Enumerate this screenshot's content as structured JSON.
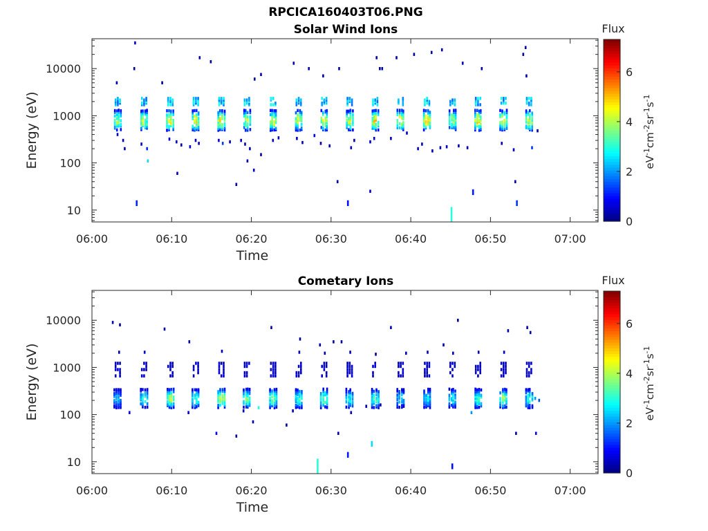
{
  "figure": {
    "title": "RPCICA160403T06.PNG"
  },
  "colors": {
    "text": "#262626",
    "colormap": [
      "#00007f",
      "#0000ff",
      "#007fff",
      "#00ffff",
      "#7fff7f",
      "#ffff00",
      "#ff7f00",
      "#ff0000",
      "#7f0000"
    ]
  },
  "chart_data": [
    {
      "type": "heatmap",
      "title": "Solar Wind Ions",
      "xlabel": "Time",
      "ylabel": "Energy (eV)",
      "x_ticks": [
        "06:00",
        "06:10",
        "06:20",
        "06:30",
        "06:40",
        "06:50",
        "07:00"
      ],
      "xlim_minutes": [
        0,
        63.5
      ],
      "y_scale": "log",
      "y_ticks": [
        10,
        100,
        1000,
        10000
      ],
      "y_tick_labels": [
        "10",
        "100",
        "1000",
        "10000"
      ],
      "ylim": [
        5.6,
        43000
      ],
      "colorbar": {
        "title": "Flux",
        "label_parts": [
          "eV",
          "-1",
          "cm",
          "-2",
          "sr",
          "-1",
          "s",
          "-1"
        ],
        "range": [
          0,
          7.3
        ],
        "ticks": [
          0,
          2,
          4,
          6
        ],
        "tick_labels": [
          "0",
          "2",
          "4",
          "6"
        ]
      },
      "sweep_times_minutes": [
        3.2,
        6.5,
        9.8,
        13.0,
        16.2,
        19.4,
        22.7,
        25.9,
        29.1,
        32.3,
        35.5,
        38.7,
        42.0,
        45.2,
        48.4,
        51.6,
        54.8
      ],
      "main_band": {
        "center_eV": 800,
        "spread_log10": 0.13,
        "peak_flux": [
          4.0,
          4.2,
          4.9,
          4.6,
          4.7,
          4.2,
          4.5,
          4.4,
          4.5,
          4.4,
          4.8,
          4.6,
          4.9,
          4.2,
          4.9,
          4.4,
          4.6
        ]
      },
      "upper_band": {
        "center_eV": 2000,
        "spread_log10": 0.06,
        "peak_flux": 2.7
      },
      "scatter_points": [
        [
          5.3,
          35000,
          0.6
        ],
        [
          3.0,
          5000,
          0.3
        ],
        [
          5.2,
          10000,
          0.2
        ],
        [
          8.7,
          5000,
          0.2
        ],
        [
          13.4,
          17000,
          0.3
        ],
        [
          14.8,
          14000,
          0.2
        ],
        [
          20.3,
          6000,
          0.3
        ],
        [
          21.1,
          7500,
          0.3
        ],
        [
          25.2,
          13000,
          0.3
        ],
        [
          27.1,
          10000,
          0.3
        ],
        [
          28.9,
          7000,
          0.3
        ],
        [
          30.9,
          10000,
          0.3
        ],
        [
          35.6,
          17000,
          0.3
        ],
        [
          36.3,
          10000,
          0.2
        ],
        [
          38.1,
          17000,
          0.3
        ],
        [
          40.3,
          20000,
          0.2
        ],
        [
          42.5,
          22000,
          0.3
        ],
        [
          43.8,
          25000,
          0.2
        ],
        [
          46.4,
          13000,
          0.3
        ],
        [
          48.8,
          10000,
          0.3
        ],
        [
          54.3,
          28000,
          0.3
        ],
        [
          54.4,
          7000,
          0.3
        ],
        [
          54.0,
          20000,
          0.2
        ],
        [
          36.0,
          10000,
          0.2
        ],
        [
          3.1,
          400,
          0.5
        ],
        [
          3.8,
          300,
          0.4
        ],
        [
          4.0,
          200,
          0.4
        ],
        [
          6.1,
          250,
          0.5
        ],
        [
          6.8,
          200,
          1.2
        ],
        [
          6.9,
          110,
          2.5
        ],
        [
          9.6,
          320,
          0.6
        ],
        [
          10.5,
          280,
          0.5
        ],
        [
          11.1,
          240,
          0.4
        ],
        [
          12.2,
          220,
          0.5
        ],
        [
          12.9,
          300,
          0.4
        ],
        [
          13.3,
          260,
          0.5
        ],
        [
          15.8,
          300,
          0.7
        ],
        [
          16.3,
          260,
          1.3
        ],
        [
          17.2,
          280,
          0.4
        ],
        [
          18.6,
          300,
          0.5
        ],
        [
          19.1,
          250,
          0.4
        ],
        [
          19.7,
          200,
          0.4
        ],
        [
          21.1,
          150,
          0.3
        ],
        [
          22.6,
          300,
          0.4
        ],
        [
          23.3,
          340,
          0.5
        ],
        [
          25.6,
          330,
          0.5
        ],
        [
          26.3,
          270,
          0.4
        ],
        [
          27.8,
          380,
          0.5
        ],
        [
          28.6,
          260,
          0.4
        ],
        [
          29.7,
          230,
          0.3
        ],
        [
          32.4,
          210,
          0.5
        ],
        [
          32.8,
          300,
          0.4
        ],
        [
          34.8,
          280,
          0.6
        ],
        [
          35.3,
          330,
          0.4
        ],
        [
          37.4,
          330,
          0.4
        ],
        [
          39.4,
          430,
          0.5
        ],
        [
          40.8,
          200,
          0.4
        ],
        [
          41.3,
          250,
          0.5
        ],
        [
          42.6,
          180,
          0.4
        ],
        [
          43.6,
          210,
          0.4
        ],
        [
          44.4,
          220,
          0.5
        ],
        [
          45.9,
          230,
          0.3
        ],
        [
          47.0,
          210,
          0.4
        ],
        [
          51.3,
          260,
          0.6
        ],
        [
          52.8,
          190,
          0.5
        ],
        [
          55.1,
          210,
          1.3
        ],
        [
          55.8,
          480,
          0.3
        ],
        [
          10.6,
          60,
          0.4
        ],
        [
          18.0,
          35,
          0.3
        ],
        [
          19.4,
          110,
          0.4
        ],
        [
          20.2,
          70,
          0.4
        ],
        [
          30.7,
          40,
          0.3
        ],
        [
          34.8,
          25,
          0.6
        ],
        [
          47.7,
          24,
          1.1
        ],
        [
          53.0,
          40,
          0.3
        ],
        [
          5.5,
          14,
          1.2
        ],
        [
          32.0,
          14,
          1.0
        ],
        [
          53.2,
          14,
          1.3
        ],
        [
          45.0,
          8,
          3.0
        ]
      ]
    },
    {
      "type": "heatmap",
      "title": "Cometary Ions",
      "xlabel": "Time",
      "ylabel": "Energy (eV)",
      "x_ticks": [
        "06:00",
        "06:10",
        "06:20",
        "06:30",
        "06:40",
        "06:50",
        "07:00"
      ],
      "xlim_minutes": [
        0,
        63.5
      ],
      "y_scale": "log",
      "y_ticks": [
        10,
        100,
        1000,
        10000
      ],
      "y_tick_labels": [
        "10",
        "100",
        "1000",
        "10000"
      ],
      "ylim": [
        5.6,
        43000
      ],
      "colorbar": {
        "title": "Flux",
        "label_parts": [
          "eV",
          "-1",
          "cm",
          "-2",
          "sr",
          "-1",
          "s",
          "-1"
        ],
        "range": [
          0,
          7.3
        ],
        "ticks": [
          0,
          2,
          4,
          6
        ],
        "tick_labels": [
          "0",
          "2",
          "4",
          "6"
        ]
      },
      "sweep_times_minutes": [
        3.2,
        6.5,
        9.8,
        13.0,
        16.2,
        19.4,
        22.7,
        25.9,
        29.1,
        32.3,
        35.5,
        38.7,
        42.0,
        45.2,
        48.4,
        51.6,
        54.8
      ],
      "main_band": {
        "center_eV": 220,
        "spread_log10": 0.12,
        "peak_flux": [
          2.3,
          3.2,
          4.1,
          3.4,
          4.4,
          3.7,
          3.6,
          3.3,
          3.5,
          3.0,
          3.3,
          2.6,
          2.8,
          2.9,
          3.4,
          3.9,
          3.1
        ]
      },
      "upper_band": {
        "center_eV": 900,
        "spread_log10": 0.12,
        "peak_flux": 0.6
      },
      "scatter_points": [
        [
          2.5,
          9000,
          0.4
        ],
        [
          3.4,
          8000,
          0.2
        ],
        [
          9.0,
          6500,
          0.3
        ],
        [
          12.1,
          3500,
          0.3
        ],
        [
          22.4,
          7000,
          0.3
        ],
        [
          26.0,
          4000,
          0.2
        ],
        [
          28.5,
          3000,
          0.3
        ],
        [
          30.2,
          3500,
          0.3
        ],
        [
          31.2,
          3500,
          0.2
        ],
        [
          37.4,
          7000,
          0.4
        ],
        [
          44.0,
          3000,
          0.3
        ],
        [
          45.8,
          10000,
          0.3
        ],
        [
          52.1,
          6000,
          0.3
        ],
        [
          54.5,
          7000,
          0.3
        ],
        [
          54.9,
          5500,
          0.2
        ],
        [
          35.5,
          1900,
          0.2
        ],
        [
          3.3,
          2100,
          0.4
        ],
        [
          6.5,
          2100,
          0.5
        ],
        [
          16.2,
          2200,
          0.3
        ],
        [
          25.9,
          2100,
          0.4
        ],
        [
          29.1,
          2000,
          0.4
        ],
        [
          32.3,
          2100,
          0.4
        ],
        [
          39.3,
          2000,
          0.4
        ],
        [
          42.0,
          2100,
          0.4
        ],
        [
          45.2,
          2000,
          0.4
        ],
        [
          48.4,
          2100,
          0.4
        ],
        [
          51.6,
          2100,
          0.4
        ],
        [
          4.6,
          110,
          0.8
        ],
        [
          12.0,
          110,
          0.5
        ],
        [
          18.9,
          120,
          0.5
        ],
        [
          20.8,
          140,
          3.0
        ],
        [
          25.1,
          120,
          0.4
        ],
        [
          32.4,
          110,
          0.4
        ],
        [
          34.3,
          150,
          0.4
        ],
        [
          36.1,
          160,
          0.4
        ],
        [
          39.0,
          150,
          0.5
        ],
        [
          47.5,
          110,
          2.0
        ],
        [
          56.0,
          200,
          1.5
        ],
        [
          55.5,
          220,
          2.0
        ],
        [
          15.5,
          40,
          0.8
        ],
        [
          18.0,
          35,
          0.3
        ],
        [
          20.1,
          70,
          0.4
        ],
        [
          24.3,
          60,
          0.3
        ],
        [
          30.8,
          40,
          0.3
        ],
        [
          35.0,
          24,
          2.5
        ],
        [
          53.1,
          40,
          0.3
        ],
        [
          55.6,
          40,
          0.6
        ],
        [
          32.0,
          14,
          1.1
        ],
        [
          28.2,
          8,
          3.0
        ],
        [
          45.1,
          8,
          1.0
        ]
      ]
    }
  ]
}
